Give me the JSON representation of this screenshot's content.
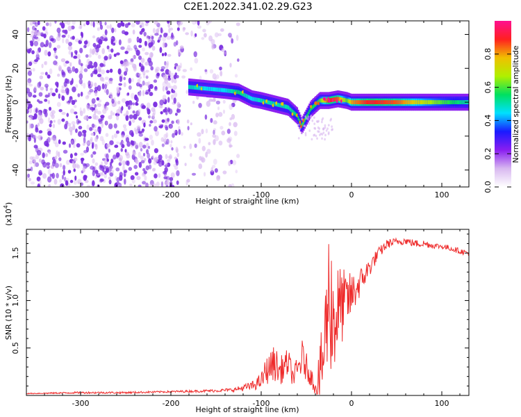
{
  "title": "C2E1.2022.341.02.29.G23",
  "colors": {
    "snr_line": "#ee2a2a",
    "dots": "#7b2fe0",
    "colormap": [
      "#ffffff",
      "#d8b8f0",
      "#8a1ef0",
      "#1a1aff",
      "#00e0ff",
      "#00e060",
      "#b0f000",
      "#f0c000",
      "#ff2020",
      "#ff1090"
    ]
  },
  "chart_data": [
    {
      "type": "heatmap",
      "xlabel": "Height of straight line (km)",
      "ylabel": "Frequency (Hz)",
      "xlim": [
        -360,
        130
      ],
      "ylim": [
        -50,
        48
      ],
      "xticks": [
        -300,
        -200,
        -100,
        0,
        100
      ],
      "yticks": [
        -40,
        -20,
        0,
        20,
        40
      ],
      "colorbar": {
        "label": "Normalized spectral amplitude",
        "range": [
          0,
          1
        ],
        "ticks": [
          "0.0",
          "0.2",
          "0.4",
          "0.6",
          "0.8"
        ],
        "tick_values": [
          0.0,
          0.2,
          0.4,
          0.6,
          0.8
        ]
      },
      "ridge": {
        "x": [
          -180,
          -160,
          -140,
          -125,
          -110,
          -100,
          -85,
          -70,
          -60,
          -55,
          -45,
          -35,
          -25,
          -15,
          -5,
          0,
          20,
          50,
          80,
          100,
          130
        ],
        "y": [
          9,
          8,
          7,
          6,
          2,
          1,
          -1,
          -3,
          -8,
          -14,
          -4,
          1,
          1,
          2,
          1,
          0,
          0,
          0,
          0,
          0,
          0
        ],
        "amplitude": [
          0.5,
          0.45,
          0.45,
          0.55,
          0.45,
          0.5,
          0.5,
          0.5,
          0.55,
          0.6,
          0.55,
          0.6,
          0.9,
          0.85,
          0.6,
          0.8,
          0.9,
          0.85,
          0.7,
          0.6,
          0.5
        ]
      },
      "noise_region_x": [
        -360,
        -125
      ]
    },
    {
      "type": "line",
      "xlabel": "Height of straight line (km)",
      "ylabel": "SNR (10 * v/v)",
      "y_multiplier": "(x10",
      "y_multiplier_exp": "4",
      "xlim": [
        -360,
        130
      ],
      "ylim": [
        0,
        1.75
      ],
      "xticks": [
        -300,
        -200,
        -100,
        0,
        100
      ],
      "yticks": [
        0.5,
        1.0,
        1.5
      ],
      "series": [
        {
          "x": [
            -360,
            -300,
            -250,
            -200,
            -150,
            -130,
            -110,
            -100,
            -95,
            -90,
            -85,
            -80,
            -75,
            -70,
            -65,
            -60,
            -55,
            -50,
            -45,
            -40,
            -35,
            -30,
            -25,
            -20,
            -15,
            -10,
            -5,
            0,
            10,
            20,
            30,
            40,
            50,
            60,
            70,
            80,
            90,
            100,
            110,
            120,
            130
          ],
          "y": [
            0.02,
            0.03,
            0.03,
            0.04,
            0.05,
            0.06,
            0.1,
            0.15,
            0.25,
            0.3,
            0.35,
            0.25,
            0.3,
            0.35,
            0.2,
            0.25,
            0.4,
            0.3,
            0.2,
            0.1,
            0.2,
            0.5,
            1.1,
            0.8,
            0.9,
            0.95,
            1.0,
            1.05,
            1.2,
            1.35,
            1.5,
            1.6,
            1.62,
            1.63,
            1.6,
            1.6,
            1.58,
            1.57,
            1.55,
            1.52,
            1.5
          ],
          "noise": [
            0.005,
            0.01,
            0.01,
            0.01,
            0.015,
            0.02,
            0.05,
            0.08,
            0.15,
            0.15,
            0.2,
            0.15,
            0.15,
            0.15,
            0.1,
            0.15,
            0.2,
            0.15,
            0.1,
            0.1,
            0.3,
            0.6,
            0.7,
            0.8,
            0.5,
            0.4,
            0.3,
            0.25,
            0.15,
            0.1,
            0.06,
            0.05,
            0.04,
            0.04,
            0.04,
            0.04,
            0.03,
            0.03,
            0.03,
            0.03,
            0.03
          ]
        }
      ]
    }
  ]
}
